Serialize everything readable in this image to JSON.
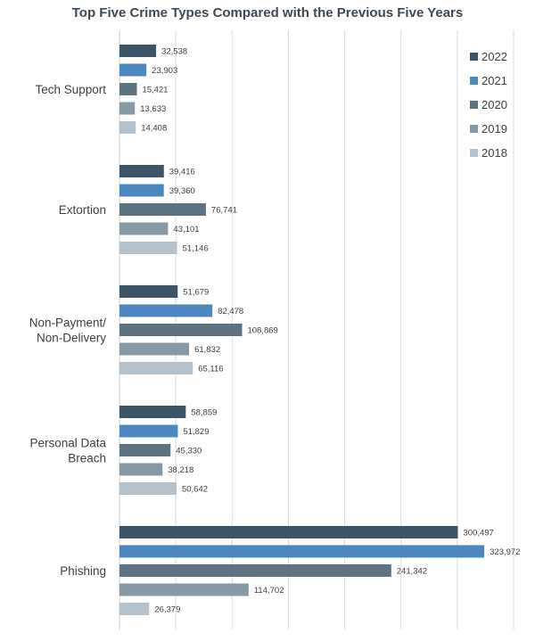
{
  "chart_data": {
    "type": "bar",
    "orientation": "horizontal",
    "title": "Top Five Crime Types Compared with the Previous Five Years",
    "categories": [
      "Tech Support",
      "Extortion",
      "Non-Payment/ Non-Delivery",
      "Personal Data Breach",
      "Phishing"
    ],
    "category_lines": [
      [
        "Tech Support"
      ],
      [
        "Extortion"
      ],
      [
        "Non-Payment/",
        "Non-Delivery"
      ],
      [
        "Personal Data",
        "Breach"
      ],
      [
        "Phishing"
      ]
    ],
    "series": [
      {
        "name": "2022",
        "color": "#3d5466",
        "values": [
          32538,
          39416,
          51679,
          58859,
          300497
        ],
        "labels": [
          "32,538",
          "39,416",
          "51,679",
          "58,859",
          "300,497"
        ]
      },
      {
        "name": "2021",
        "color": "#4d87c2",
        "values": [
          23903,
          39360,
          82478,
          51829,
          323972
        ],
        "labels": [
          "23,903",
          "39,360",
          "82,478",
          "51,829",
          "323,972"
        ]
      },
      {
        "name": "2020",
        "color": "#5e7380",
        "values": [
          15421,
          76741,
          108869,
          45330,
          241342
        ],
        "labels": [
          "15,421",
          "76,741",
          "108,869",
          "45,330",
          "241,342"
        ]
      },
      {
        "name": "2019",
        "color": "#8899a6",
        "values": [
          13633,
          43101,
          61832,
          38218,
          114702
        ],
        "labels": [
          "13,633",
          "43,101",
          "61,832",
          "38,218",
          "114,702"
        ]
      },
      {
        "name": "2018",
        "color": "#b5c1cb",
        "values": [
          14408,
          51146,
          65116,
          50642,
          26379
        ],
        "labels": [
          "14,408",
          "51,146",
          "65,116",
          "50,642",
          "26,379"
        ]
      }
    ],
    "xlim": [
      0,
      350000
    ],
    "x_gridline_step": 50000,
    "x_tick_labels_shown": false,
    "grid": true,
    "legend_position": "top-right",
    "data_labels": true
  }
}
